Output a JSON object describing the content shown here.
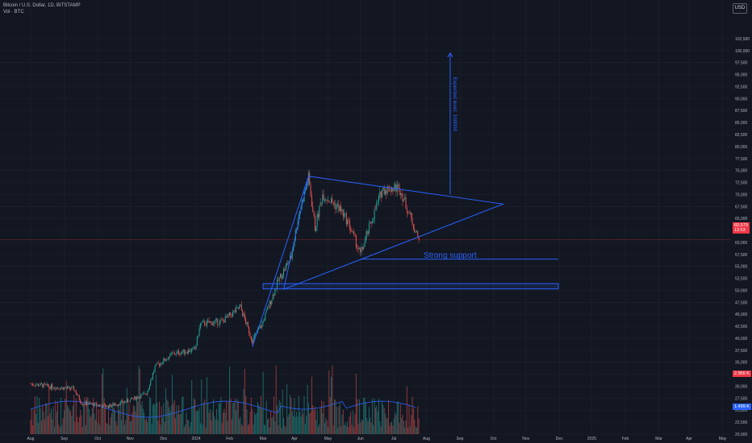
{
  "header": {
    "title": "Bitcoin / U.S. Dollar, 1D, BITSTAMP",
    "subtitle": "Vol · BTC"
  },
  "currency_button": "USD",
  "price_tag": {
    "value": "60,579",
    "sub": "13:53"
  },
  "volume_tag_red": "2.956 K",
  "volume_tag_blue": "1.499 K",
  "annotations": {
    "strong_support": "Strong support",
    "expected_level": "Expected level: 100000"
  },
  "colors": {
    "background": "#131722",
    "up": "#26a69a",
    "down": "#ef5350",
    "drawing": "#2962ff",
    "grid": "#1e222d",
    "price_line": "#f23645"
  },
  "chart_data": {
    "type": "candlestick",
    "title": "Bitcoin / U.S. Dollar, 1D, BITSTAMP",
    "y_ticks": [
      20000,
      22500,
      25000,
      27500,
      30000,
      32500,
      35000,
      37500,
      40000,
      42500,
      45000,
      47500,
      50000,
      52500,
      55000,
      57500,
      60000,
      62500,
      65000,
      67500,
      70000,
      72500,
      75000,
      77500,
      80000,
      82500,
      85000,
      87500,
      90000,
      92500,
      95000,
      97500,
      100000,
      102500
    ],
    "y_tick_labels": [
      "20,000",
      "22,500",
      "25,000",
      "27,500",
      "30,000",
      "32,500",
      "35,000",
      "37,500",
      "40,000",
      "42,500",
      "45,000",
      "47,500",
      "50,000",
      "52,500",
      "55,000",
      "57,500",
      "60,000",
      "62,500",
      "65,000",
      "67,500",
      "70,000",
      "72,500",
      "75,000",
      "77,500",
      "80,000",
      "82,500",
      "85,000",
      "87,500",
      "90,000",
      "92,500",
      "95,000",
      "97,500",
      "100,000",
      "102,500"
    ],
    "ylim": [
      19000,
      104000
    ],
    "x_labels": [
      "Aug",
      "Sep",
      "Oct",
      "Nov",
      "Dec",
      "2024",
      "Feb",
      "Mar",
      "Apr",
      "May",
      "Jun",
      "Jul",
      "Aug",
      "Sep",
      "Oct",
      "Nov",
      "Dec",
      "2025",
      "Feb",
      "Mar",
      "Apr",
      "May",
      "Jun"
    ],
    "x_label_month_index": [
      0,
      1,
      2,
      3,
      4,
      5,
      6,
      7,
      8,
      9,
      10,
      11,
      12,
      13,
      14,
      15,
      16,
      17,
      18,
      19,
      20,
      21,
      22
    ],
    "start": "2023-07-01",
    "price_path": [
      [
        "2023-07-01",
        30500
      ],
      [
        "2023-07-20",
        29900
      ],
      [
        "2023-08-10",
        29400
      ],
      [
        "2023-08-17",
        26500
      ],
      [
        "2023-09-10",
        25800
      ],
      [
        "2023-09-30",
        27000
      ],
      [
        "2023-10-16",
        28500
      ],
      [
        "2023-10-24",
        34000
      ],
      [
        "2023-11-09",
        36700
      ],
      [
        "2023-11-30",
        37700
      ],
      [
        "2023-12-05",
        43000
      ],
      [
        "2023-12-25",
        43500
      ],
      [
        "2024-01-11",
        46500
      ],
      [
        "2024-01-22",
        39500
      ],
      [
        "2024-01-31",
        43000
      ],
      [
        "2024-02-15",
        52000
      ],
      [
        "2024-02-27",
        57000
      ],
      [
        "2024-03-05",
        66000
      ],
      [
        "2024-03-14",
        73500
      ],
      [
        "2024-03-20",
        63000
      ],
      [
        "2024-03-27",
        70000
      ],
      [
        "2024-04-12",
        67000
      ],
      [
        "2024-04-20",
        64000
      ],
      [
        "2024-05-01",
        57500
      ],
      [
        "2024-05-21",
        71000
      ],
      [
        "2024-06-06",
        71500
      ],
      [
        "2024-06-15",
        66000
      ],
      [
        "2024-06-24",
        60500
      ]
    ],
    "last_price": 60579,
    "drawings": {
      "triangle": [
        [
          "2024-03-14",
          73800
        ],
        [
          "2024-09-10",
          68000
        ],
        [
          "2024-02-20",
          50200
        ]
      ],
      "left_trendline": [
        [
          "2024-01-22",
          38200
        ],
        [
          "2024-03-14",
          73800
        ]
      ],
      "support_line": [
        [
          "2024-05-01",
          56500
        ],
        [
          "2024-10-31",
          56500
        ]
      ],
      "zone": {
        "x": [
          "2024-02-01",
          "2024-10-31"
        ],
        "y": [
          50300,
          51400
        ]
      },
      "target_arrow": {
        "x": "2024-07-23",
        "y": [
          70000,
          99500
        ]
      }
    }
  }
}
